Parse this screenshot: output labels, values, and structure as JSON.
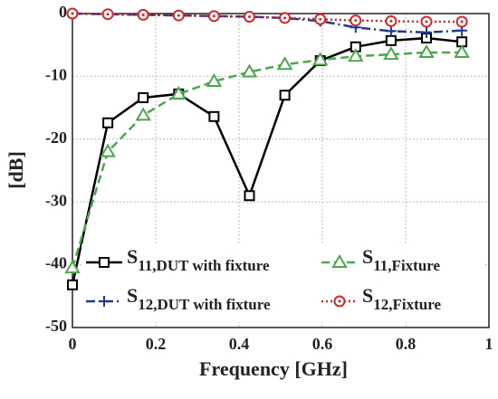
{
  "chart_data": {
    "type": "line",
    "x_label": "Frequency [GHz]",
    "y_label": "[dB]",
    "x": [
      0,
      0.085,
      0.17,
      0.255,
      0.34,
      0.425,
      0.51,
      0.595,
      0.68,
      0.765,
      0.85,
      0.935
    ],
    "series": [
      {
        "name": "S11,DUT with fixture",
        "color": "#000000",
        "marker": "square",
        "dash": "solid",
        "values": [
          -43.2,
          -17.4,
          -13.4,
          -12.8,
          -16.4,
          -29,
          -13,
          -7.5,
          -5.3,
          -4.3,
          -3.9,
          -4.5
        ]
      },
      {
        "name": "S11,Fixture",
        "color": "#4aa84a",
        "marker": "triangle",
        "dash": "dashed",
        "values": [
          -40.5,
          -22,
          -16.2,
          -12.8,
          -10.8,
          -9.3,
          -8.1,
          -7.4,
          -6.8,
          -6.5,
          -6.2,
          -6.2
        ]
      },
      {
        "name": "S12,DUT with fixture",
        "color": "#1f3a93",
        "marker": "plus",
        "dash": "dashdot",
        "values": [
          0,
          -0.1,
          -0.2,
          -0.3,
          -0.4,
          -0.5,
          -0.7,
          -1.2,
          -2.2,
          -2.8,
          -3.0,
          -2.7
        ]
      },
      {
        "name": "S12,Fixture",
        "color": "#d62728",
        "marker": "circle",
        "dash": "dotted",
        "values": [
          0,
          -0.1,
          -0.2,
          -0.3,
          -0.4,
          -0.5,
          -0.7,
          -0.9,
          -1.1,
          -1.2,
          -1.3,
          -1.3
        ]
      }
    ],
    "xlim": [
      0,
      1
    ],
    "xticks": [
      0,
      0.2,
      0.4,
      0.6,
      0.8,
      1
    ],
    "ylim": [
      -50,
      0
    ],
    "yticks": [
      0,
      -10,
      -20,
      -30,
      -40,
      -50
    ],
    "grid": true
  }
}
